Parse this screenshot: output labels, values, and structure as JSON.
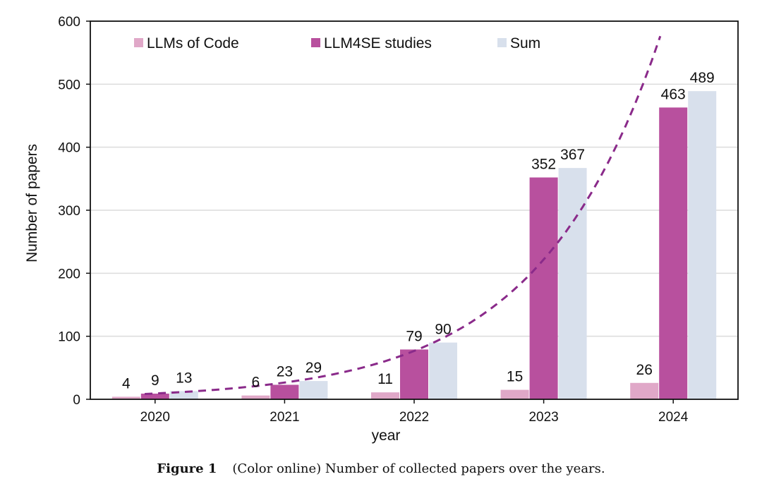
{
  "chart_data": {
    "type": "bar",
    "title": "",
    "xlabel": "year",
    "ylabel": "Number of papers",
    "categories": [
      "2020",
      "2021",
      "2022",
      "2023",
      "2024"
    ],
    "ylim": [
      0,
      600
    ],
    "yticks": [
      0,
      100,
      200,
      300,
      400,
      500,
      600
    ],
    "grid": true,
    "legend_position": "top",
    "series": [
      {
        "name": "LLMs  of Code",
        "color": "#e0a8c8",
        "values": [
          4,
          6,
          11,
          15,
          26
        ]
      },
      {
        "name": "LLM4SE studies",
        "color": "#b8509e",
        "values": [
          9,
          23,
          79,
          352,
          463
        ]
      },
      {
        "name": "Sum",
        "color": "#d8e0ec",
        "values": [
          13,
          29,
          90,
          367,
          489
        ]
      }
    ],
    "trendline": {
      "style": "dashed",
      "color": "#8a2a8a"
    }
  },
  "caption": {
    "label": "Figure 1",
    "text": "(Color online) Number of collected papers over the years."
  }
}
